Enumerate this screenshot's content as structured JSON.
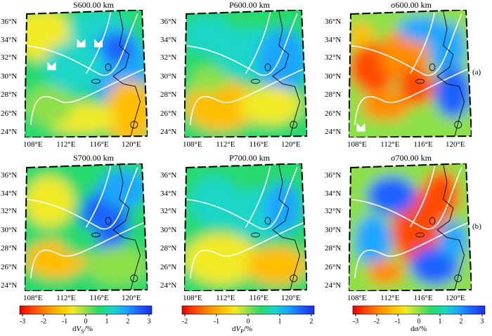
{
  "colors": {
    "scale": [
      "#e60000",
      "#ff4b00",
      "#ff8c00",
      "#ffbe00",
      "#f2ea28",
      "#8ee04a",
      "#26d96e",
      "#1ad6c8",
      "#1aa6ff",
      "#1c62ff",
      "#1e2ee6"
    ],
    "frame": "#000000",
    "plate": "#ffffff",
    "coast": "#000000"
  },
  "panels": [
    {
      "id": "s600",
      "title": "S600.00 km",
      "markers": [
        {
          "name": "seismic-station-icon"
        },
        {
          "name": "seismic-station-icon"
        },
        {
          "name": "seismic-station-icon"
        }
      ]
    },
    {
      "id": "p600",
      "title": "P600.00 km",
      "markers": []
    },
    {
      "id": "sig600",
      "title": "σ600.00 km",
      "markers": [
        {
          "name": "seismic-station-icon"
        }
      ]
    },
    {
      "id": "s700",
      "title": "S700.00 km",
      "markers": []
    },
    {
      "id": "p700",
      "title": "P700.00 km",
      "markers": []
    },
    {
      "id": "sig700",
      "title": "σ700.00 km",
      "markers": []
    }
  ],
  "lat_labels": [
    "36°N",
    "34°N",
    "32°N",
    "30°N",
    "28°N",
    "26°N",
    "24°N"
  ],
  "lon_labels": [
    "108°E",
    "112°E",
    "116°E",
    "120°E"
  ],
  "row_tags": [
    "(a)",
    "(b)"
  ],
  "colorbars": [
    {
      "title": "dV_S/%",
      "ticks": [
        "-3",
        "-2",
        "-1",
        "0",
        "1",
        "2",
        "3"
      ]
    },
    {
      "title": "dV_P/%",
      "ticks": [
        "-2",
        "-1",
        "0",
        "1",
        "2"
      ]
    },
    {
      "title": "dσ/%",
      "ticks": [
        "-3",
        "-2",
        "-1",
        "0",
        "1",
        "2",
        "3"
      ]
    }
  ]
}
